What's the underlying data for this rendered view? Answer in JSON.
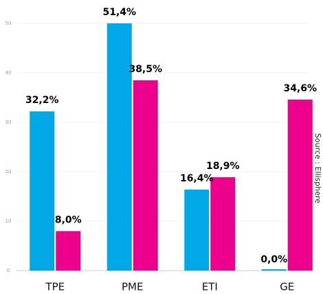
{
  "chart_data": {
    "type": "bar",
    "categories": [
      "TPE",
      "PME",
      "ETI",
      "GE"
    ],
    "series": [
      {
        "color": "#00a8e8",
        "values": [
          32.2,
          51.4,
          16.4,
          0.0
        ],
        "value_labels": [
          "32,2%",
          "51,4%",
          "16,4%",
          "0,0%"
        ]
      },
      {
        "color": "#ec008c",
        "values": [
          8.0,
          38.5,
          18.9,
          34.6
        ],
        "value_labels": [
          "8,0%",
          "38,5%",
          "18,9%",
          "34,6%"
        ]
      }
    ],
    "ylim": [
      0,
      50
    ],
    "yticks": [
      0,
      10,
      20,
      30,
      40,
      50
    ],
    "grid": true,
    "annotation": "Source : Ellisphere"
  }
}
